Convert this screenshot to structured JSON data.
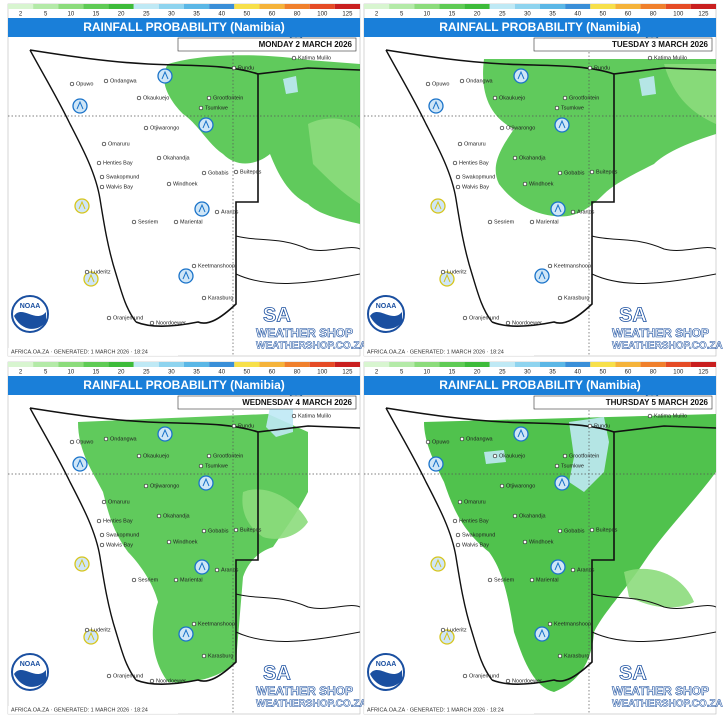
{
  "title": "RAINFALL PROBABILITY (Namibia)",
  "scale": [
    2,
    5,
    10,
    15,
    20,
    25,
    30,
    35,
    40,
    50,
    60,
    80,
    100,
    125
  ],
  "towns": [
    "Opuwo",
    "Ondangwa",
    "Rundu",
    "Katima Mulilo",
    "Okaukuejo",
    "Grootfontein",
    "Tsumkwe",
    "Otjiwarongo",
    "Omaruru",
    "Okahandja",
    "Henties Bay",
    "Swakopmund",
    "Walvis Bay",
    "Windhoek",
    "Gobabis",
    "Buitepos",
    "Aranos",
    "Sesriem",
    "Mariental",
    "Luderitz",
    "Keetmanshoop",
    "Karasburg",
    "Oranjemund",
    "Noordoewer"
  ],
  "logos": {
    "noaa": "NOAA",
    "brand": "SA",
    "shop": "WEATHER SHOP",
    "site": "WEATHERSHOP.CO.ZA"
  },
  "panels": [
    {
      "date": "MONDAY 2 MARCH 2026",
      "footer": "AFRICA.OA.ZA · GENERATED: 1 MARCH 2026 · 18:24"
    },
    {
      "date": "TUESDAY 3 MARCH 2026",
      "footer": "AFRICA.OA.ZA · GENERATED: 1 MARCH 2026 · 18:24"
    },
    {
      "date": "WEDNESDAY 4 MARCH 2026",
      "footer": "AFRICA.OA.ZA · GENERATED: 1 MARCH 2026 · 18:24"
    },
    {
      "date": "THURSDAY 5 MARCH 2026",
      "footer": "AFRICA.OA.ZA · GENERATED: 1 MARCH 2026 · 18:24"
    }
  ]
}
